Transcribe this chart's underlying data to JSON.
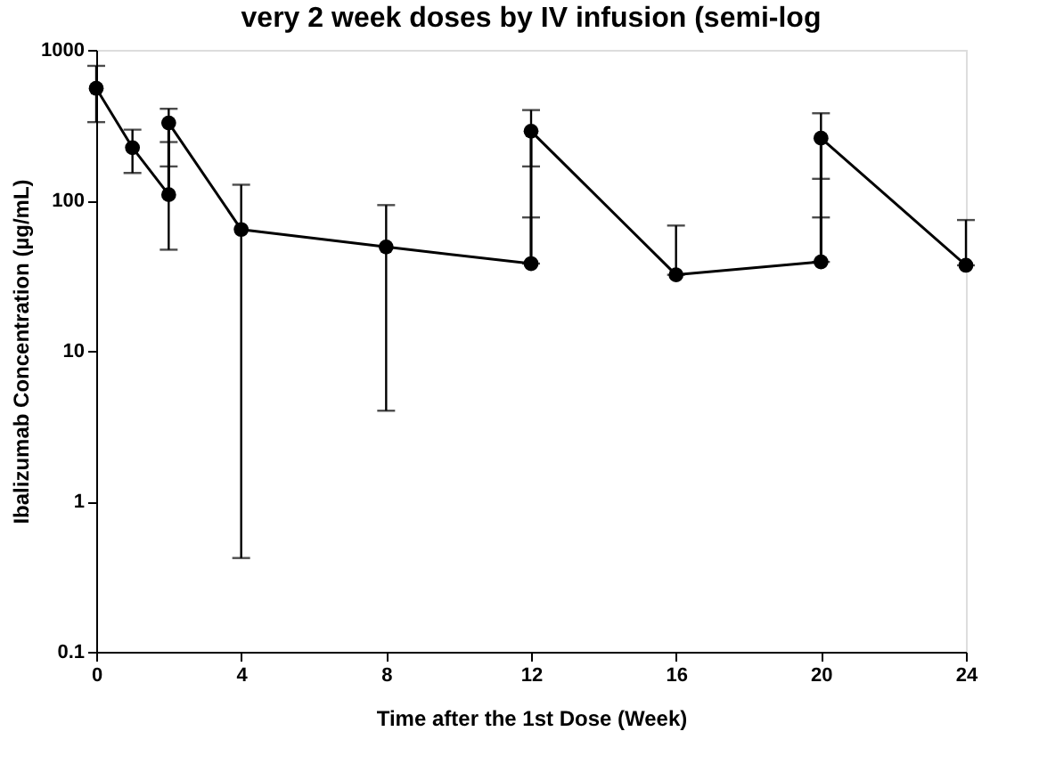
{
  "chart_data": {
    "type": "line",
    "title": "very 2 week doses by IV infusion (semi-log",
    "xlabel": "Time after the 1st Dose (Week)",
    "ylabel": "Ibalizumab Concentration (µg/mL)",
    "x": [
      0,
      1,
      2,
      2,
      4,
      8,
      12,
      12,
      16,
      20,
      20,
      24
    ],
    "values": [
      555,
      224,
      109,
      327,
      64,
      49,
      38,
      288,
      32,
      39,
      259,
      37
    ],
    "color": "#000000",
    "errors": [
      [
        331,
        783
      ],
      [
        152,
        295
      ],
      [
        47,
        244
      ],
      [
        168,
        406
      ],
      [
        0.42,
        127
      ],
      [
        4.0,
        93
      ],
      [
        38,
        77
      ],
      [
        168,
        398
      ],
      [
        32,
        68
      ],
      [
        39,
        77
      ],
      [
        139,
        379
      ],
      [
        37,
        74
      ]
    ],
    "log": "y",
    "xlim": [
      0,
      24
    ],
    "xticks": [
      0,
      4,
      8,
      12,
      16,
      20,
      24
    ],
    "ylim": [
      0.1,
      1000
    ],
    "yticks": [
      0.1,
      1,
      10,
      100,
      1000
    ],
    "grid": false,
    "legend": false,
    "marker": "circle",
    "line_style": "solid"
  }
}
